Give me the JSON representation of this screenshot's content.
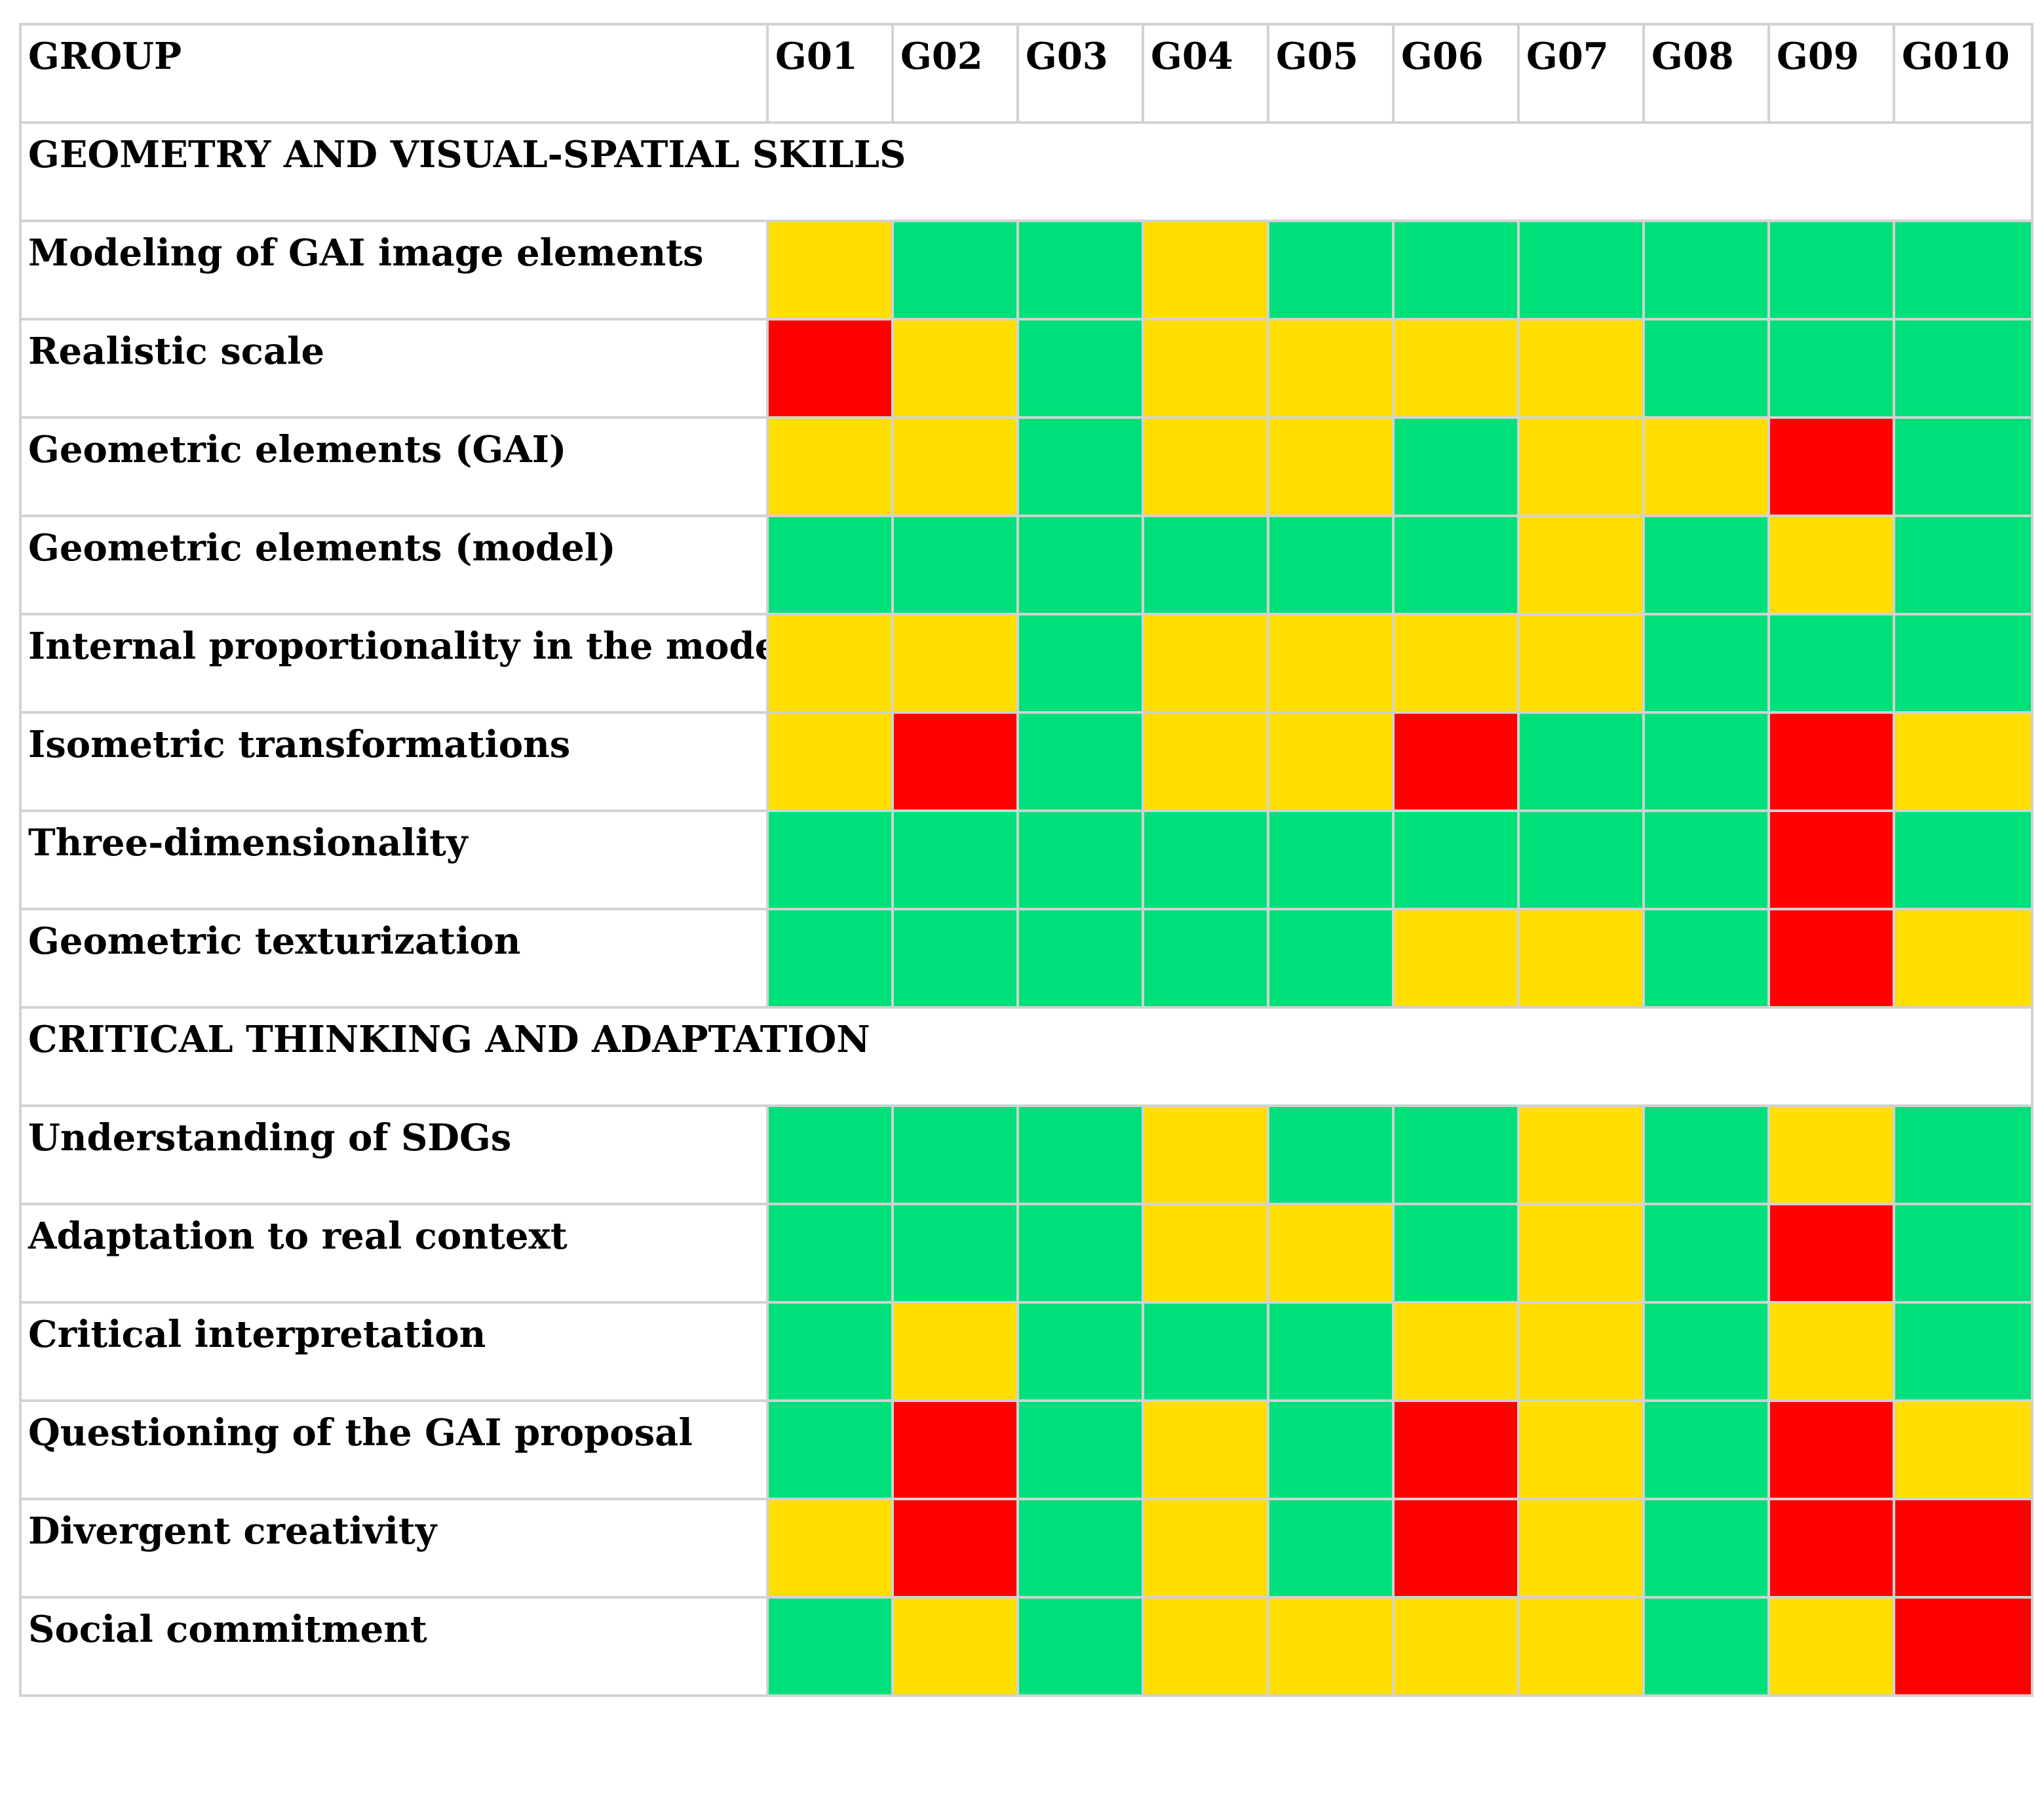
{
  "chart_data": {
    "type": "heatmap",
    "corner_label": "GROUP",
    "columns": [
      "G01",
      "G02",
      "G03",
      "G04",
      "G05",
      "G06",
      "G07",
      "G08",
      "G09",
      "G010"
    ],
    "colors": {
      "green": "#00e07a",
      "yellow": "#ffde00",
      "red": "#ff0000"
    },
    "sections": [
      {
        "title": "GEOMETRY AND VISUAL-SPATIAL SKILLS",
        "rows": [
          {
            "label": "Modeling of GAI image elements",
            "values": [
              "yellow",
              "green",
              "green",
              "yellow",
              "green",
              "green",
              "green",
              "green",
              "green",
              "green"
            ]
          },
          {
            "label": "Realistic scale",
            "values": [
              "red",
              "yellow",
              "green",
              "yellow",
              "yellow",
              "yellow",
              "yellow",
              "green",
              "green",
              "green"
            ]
          },
          {
            "label": "Geometric elements (GAI)",
            "values": [
              "yellow",
              "yellow",
              "green",
              "yellow",
              "yellow",
              "green",
              "yellow",
              "yellow",
              "red",
              "green"
            ]
          },
          {
            "label": "Geometric elements (model)",
            "values": [
              "green",
              "green",
              "green",
              "green",
              "green",
              "green",
              "yellow",
              "green",
              "yellow",
              "green"
            ]
          },
          {
            "label": "Internal proportionality in the model",
            "values": [
              "yellow",
              "yellow",
              "green",
              "yellow",
              "yellow",
              "yellow",
              "yellow",
              "green",
              "green",
              "green"
            ]
          },
          {
            "label": "Isometric transformations",
            "values": [
              "yellow",
              "red",
              "green",
              "yellow",
              "yellow",
              "red",
              "green",
              "green",
              "red",
              "yellow"
            ]
          },
          {
            "label": "Three-dimensionality",
            "values": [
              "green",
              "green",
              "green",
              "green",
              "green",
              "green",
              "green",
              "green",
              "red",
              "green"
            ]
          },
          {
            "label": "Geometric texturization",
            "values": [
              "green",
              "green",
              "green",
              "green",
              "green",
              "yellow",
              "yellow",
              "green",
              "red",
              "yellow"
            ]
          }
        ]
      },
      {
        "title": "CRITICAL THINKING AND ADAPTATION",
        "rows": [
          {
            "label": "Understanding of SDGs",
            "values": [
              "green",
              "green",
              "green",
              "yellow",
              "green",
              "green",
              "yellow",
              "green",
              "yellow",
              "green"
            ]
          },
          {
            "label": "Adaptation to real context",
            "values": [
              "green",
              "green",
              "green",
              "yellow",
              "yellow",
              "green",
              "yellow",
              "green",
              "red",
              "green"
            ]
          },
          {
            "label": "Critical interpretation",
            "values": [
              "green",
              "yellow",
              "green",
              "green",
              "green",
              "yellow",
              "yellow",
              "green",
              "yellow",
              "green"
            ]
          },
          {
            "label": "Questioning of the GAI proposal",
            "values": [
              "green",
              "red",
              "green",
              "yellow",
              "green",
              "red",
              "yellow",
              "green",
              "red",
              "yellow"
            ]
          },
          {
            "label": "Divergent creativity",
            "values": [
              "yellow",
              "red",
              "green",
              "yellow",
              "green",
              "red",
              "yellow",
              "green",
              "red",
              "red"
            ]
          },
          {
            "label": "Social commitment",
            "values": [
              "green",
              "yellow",
              "green",
              "yellow",
              "yellow",
              "yellow",
              "yellow",
              "green",
              "yellow",
              "red"
            ]
          }
        ]
      }
    ]
  }
}
